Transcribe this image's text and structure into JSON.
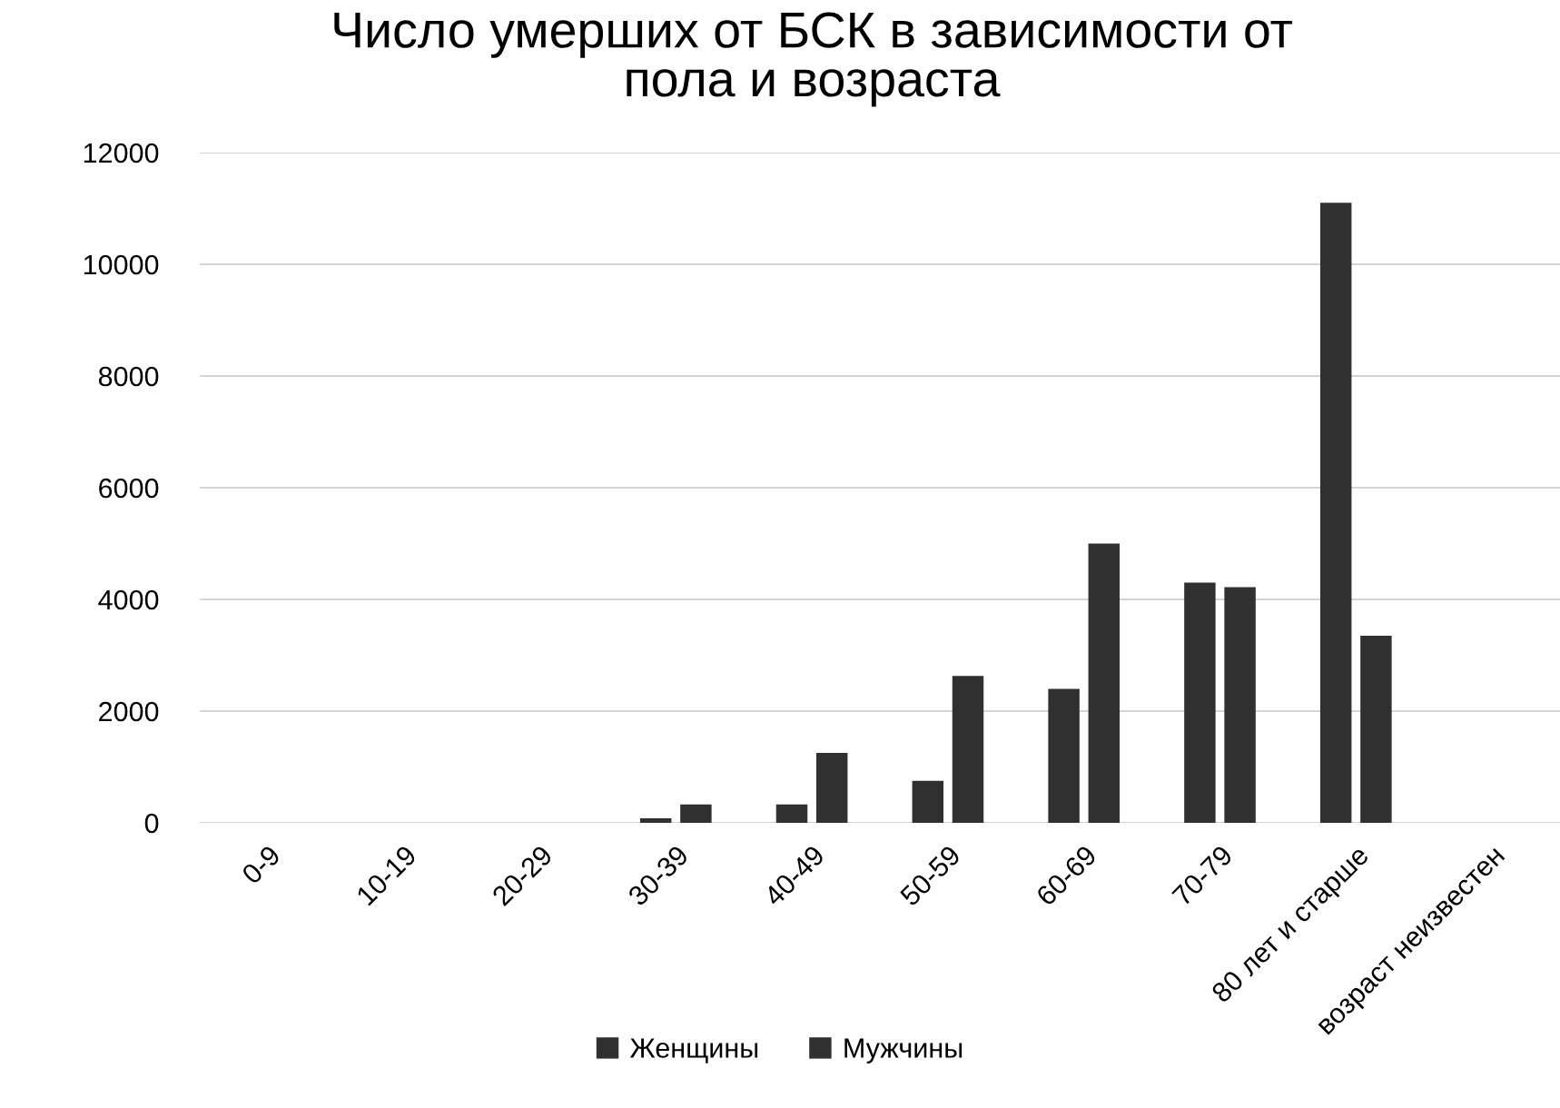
{
  "chart_data": {
    "type": "bar",
    "title": "Число умерших от БСК в зависимости от пола и возраста",
    "categories": [
      "0-9",
      "10-19",
      "20-29",
      "30-39",
      "40-49",
      "50-59",
      "60-69",
      "70-79",
      "80 лет и старше",
      "возраст неизвестен"
    ],
    "series": [
      {
        "name": "Женщины",
        "color": "#303030",
        "values": [
          0,
          0,
          0,
          80,
          330,
          750,
          2400,
          4300,
          11100,
          0
        ]
      },
      {
        "name": "Мужчины",
        "color": "#303030",
        "values": [
          0,
          0,
          0,
          330,
          1250,
          2630,
          5000,
          4220,
          3350,
          0
        ]
      }
    ],
    "ylim": [
      0,
      12000
    ],
    "yticks": [
      0,
      2000,
      4000,
      6000,
      8000,
      10000,
      12000
    ],
    "grid": "y",
    "legend": "bottom"
  }
}
